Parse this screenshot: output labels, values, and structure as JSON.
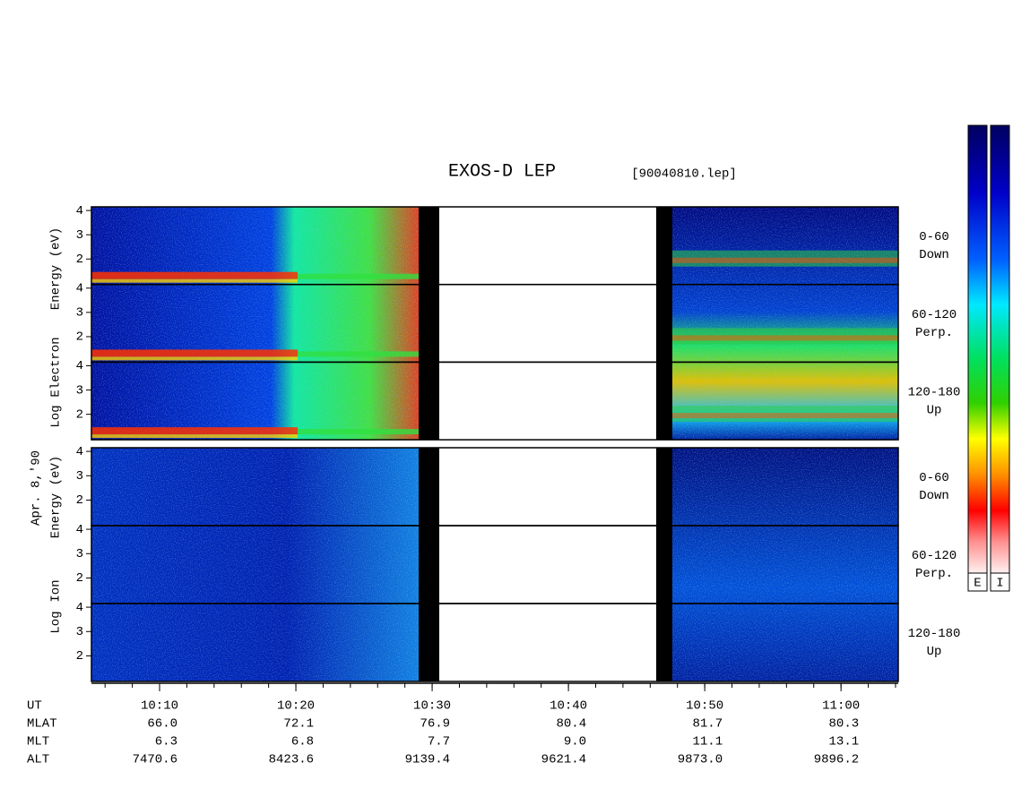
{
  "chart_data": {
    "type": "spectrogram",
    "title": "EXOS-D LEP",
    "file_label": "[90040810.lep]",
    "date_label": "Apr. 8,'90",
    "groups": [
      {
        "name": "electron",
        "axis_words": [
          "Log",
          "Electron",
          "Energy (eV)"
        ],
        "panels": [
          {
            "labels": [
              "0-60",
              "Down"
            ],
            "ylim": [
              0.95,
              4.15
            ],
            "yticks": [
              2,
              3,
              4
            ]
          },
          {
            "labels": [
              "60-120",
              "Perp."
            ],
            "ylim": [
              0.95,
              4.15
            ],
            "yticks": [
              2,
              3,
              4
            ]
          },
          {
            "labels": [
              "120-180",
              "Up"
            ],
            "ylim": [
              0.95,
              4.15
            ],
            "yticks": [
              2,
              3,
              4
            ]
          }
        ]
      },
      {
        "name": "ion",
        "axis_words": [
          "Log",
          "Ion",
          "Energy (eV)"
        ],
        "panels": [
          {
            "labels": [
              "0-60",
              "Down"
            ],
            "ylim": [
              0.95,
              4.15
            ],
            "yticks": [
              2,
              3,
              4
            ]
          },
          {
            "labels": [
              "60-120",
              "Perp."
            ],
            "ylim": [
              0.95,
              4.15
            ],
            "yticks": [
              2,
              3,
              4
            ]
          },
          {
            "labels": [
              "120-180",
              "Up"
            ],
            "ylim": [
              0.95,
              4.15
            ],
            "yticks": [
              2,
              3,
              4
            ]
          }
        ]
      }
    ],
    "xlim": [
      605,
      664.2
    ],
    "xticks": [
      {
        "value": 610,
        "label": "10:10"
      },
      {
        "value": 620,
        "label": "10:20"
      },
      {
        "value": 630,
        "label": "10:30"
      },
      {
        "value": 640,
        "label": "10:40"
      },
      {
        "value": 650,
        "label": "10:50"
      },
      {
        "value": 660,
        "label": "11:00"
      }
    ],
    "orbit": [
      {
        "name": "UT"
      },
      {
        "name": "MLAT",
        "values": [
          "66.0",
          "72.1",
          "76.9",
          "80.4",
          "81.7",
          "80.3"
        ]
      },
      {
        "name": "MLT",
        "values": [
          "6.3",
          "6.8",
          "7.7",
          "9.0",
          "11.1",
          "13.1"
        ]
      },
      {
        "name": "ALT",
        "values": [
          "7470.6",
          "8423.6",
          "9139.4",
          "9621.4",
          "9873.0",
          "9896.2"
        ]
      }
    ],
    "colorbar_labels": [
      "E",
      "I"
    ]
  }
}
